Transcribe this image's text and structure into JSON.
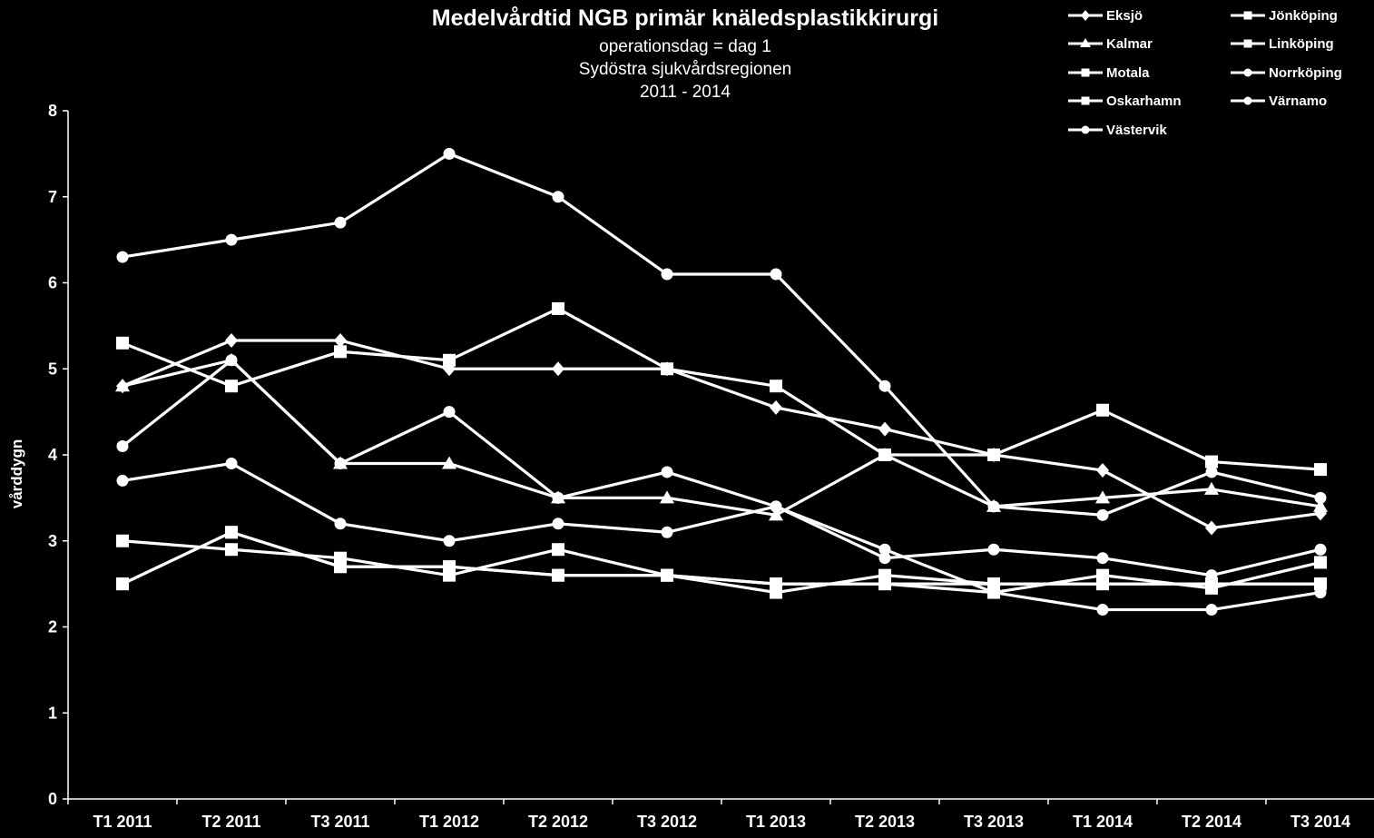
{
  "chart_data": {
    "type": "line",
    "title": "Medelvårdtid NGB primär knäledsplastikkirurgi",
    "subtitles": [
      "operationsdag = dag 1",
      "Sydöstra sjukvårdsregionen",
      "2011 - 2014"
    ],
    "xlabel": "",
    "ylabel": "vårddygn",
    "ylim": [
      0,
      8
    ],
    "yticks": [
      "0",
      "1",
      "2",
      "3",
      "4",
      "5",
      "6",
      "7",
      "8"
    ],
    "grid": false,
    "legend_position": "top-right",
    "categories": [
      "T1 2011",
      "T2 2011",
      "T3 2011",
      "T1 2012",
      "T2 2012",
      "T3 2012",
      "T1 2013",
      "T2 2013",
      "T3 2013",
      "T1 2014",
      "T2 2014",
      "T3 2014"
    ],
    "series": [
      {
        "name": "Eksjö",
        "marker": "diamond",
        "values": [
          4.8,
          5.33,
          5.33,
          5.0,
          5.0,
          5.0,
          4.55,
          4.3,
          4.0,
          3.82,
          3.15,
          3.32
        ]
      },
      {
        "name": "Jönköping",
        "marker": "square",
        "values": [
          5.3,
          4.8,
          5.2,
          5.1,
          5.7,
          5.0,
          4.8,
          4.0,
          4.0,
          4.52,
          3.92,
          3.83
        ]
      },
      {
        "name": "Kalmar",
        "marker": "triangle",
        "values": [
          4.8,
          5.1,
          3.9,
          3.9,
          3.5,
          3.5,
          3.3,
          4.0,
          3.4,
          3.5,
          3.6,
          3.4
        ]
      },
      {
        "name": "Linköping",
        "marker": "square",
        "values": [
          2.5,
          3.1,
          2.7,
          2.7,
          2.6,
          2.6,
          2.4,
          2.6,
          2.5,
          2.5,
          2.5,
          2.5
        ]
      },
      {
        "name": "Motala",
        "marker": "square",
        "values": [
          3.0,
          2.9,
          2.8,
          2.6,
          2.9,
          2.6,
          2.5,
          2.5,
          2.4,
          2.6,
          2.45,
          2.75
        ]
      },
      {
        "name": "Norrköping",
        "marker": "circle",
        "values": [
          4.1,
          5.1,
          3.9,
          4.5,
          3.5,
          3.8,
          3.4,
          2.8,
          2.9,
          2.8,
          2.6,
          2.9
        ]
      },
      {
        "name": "Oskarhamn",
        "marker": "square",
        "values": [
          2.5,
          3.1,
          2.7,
          2.7,
          2.6,
          2.6,
          2.5,
          2.5,
          2.5,
          2.5,
          2.5,
          2.5
        ]
      },
      {
        "name": "Värnamo",
        "marker": "circle",
        "values": [
          3.7,
          3.9,
          3.2,
          3.0,
          3.2,
          3.1,
          3.4,
          2.9,
          2.4,
          2.2,
          2.2,
          2.4
        ]
      },
      {
        "name": "Västervik",
        "marker": "circle",
        "values": [
          6.3,
          6.5,
          6.7,
          7.5,
          7.0,
          6.1,
          6.1,
          4.8,
          3.4,
          3.3,
          3.8,
          3.5
        ]
      }
    ]
  }
}
